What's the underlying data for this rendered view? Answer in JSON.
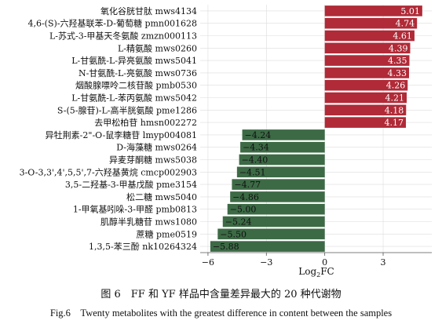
{
  "chart_data": {
    "type": "bar",
    "orientation": "horizontal",
    "categories": [
      "氧化谷胱甘肽 mws4134",
      "4,6-(S)-六羟基联苯-D-葡萄糖 pmn001628",
      "L-苏式-3-甲基天冬氨酸 zmzn000113",
      "L-精氨酸 mws0260",
      "L-甘氨酰-L-异亮氨酸 mws5041",
      "N-甘氨酰-L-亮氨酸 mws0736",
      "烟酸腺嘌呤二核苷酸 pmb0530",
      "L-甘氨酰-L-苯丙氨酸 mws5042",
      "S-(5-腺苷)-L-高半胱氨酸 pme1286",
      "去甲松柏苷 hmsn002272",
      "异牡荆素-2\"-O-鼠李糖苷 lmyp004081",
      "D-海藻糖 mws0264",
      "异麦芽酮糖 mws5038",
      "3-O-3,3',4',5,5',7-六羟基黄烷 cmcp002903",
      "3,5-二羟基-3-甲基戊酸 pme3154",
      "松二糖 mws5040",
      "1-甲氧基吲哚-3-甲醛 pmb0813",
      "肌醇半乳糖苷 mws1080",
      "蔗糖 pme0519",
      "1,3,5-苯三酚 nk10264324"
    ],
    "values": [
      5.01,
      4.74,
      4.61,
      4.39,
      4.35,
      4.33,
      4.26,
      4.21,
      4.18,
      4.17,
      -4.24,
      -4.34,
      -4.4,
      -4.51,
      -4.77,
      -4.86,
      -5.0,
      -5.24,
      -5.5,
      -5.88
    ],
    "value_labels": [
      "5.01",
      "4.74",
      "4.61",
      "4.39",
      "4.35",
      "4.33",
      "4.26",
      "4.21",
      "4.18",
      "4.17",
      "−4.24",
      "−4.34",
      "−4.40",
      "−4.51",
      "−4.77",
      "−4.86",
      "−5.00",
      "−5.24",
      "−5.50",
      "−5.88"
    ],
    "xlim": [
      -6.4,
      5.5
    ],
    "xticks": [
      -6,
      -3,
      0,
      3
    ],
    "xtick_labels": [
      "−6",
      "−3",
      "0",
      "3"
    ],
    "xlabel_main": "Log",
    "xlabel_sub": "2",
    "xlabel_tail": "FC",
    "ylabel": "",
    "grid": true,
    "colors": {
      "positive": "#b02a37",
      "negative": "#3c6a45",
      "grid": "#dcdcdc",
      "axis": "#555555"
    }
  },
  "caption": {
    "zh": "图 6　FF 和 YF 样品中含量差异最大的 20 种代谢物",
    "en": "Fig.6　Twenty metabolites with the greatest difference in content between the samples"
  }
}
